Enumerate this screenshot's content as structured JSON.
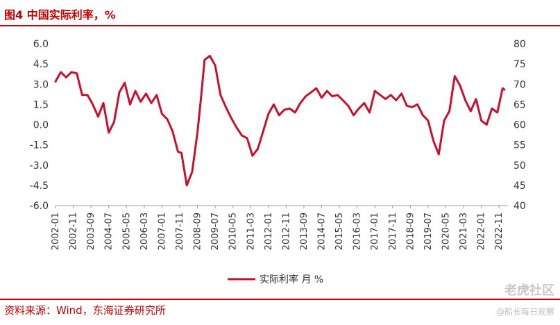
{
  "header": {
    "title": "图4  中国实际利率，%"
  },
  "footer": {
    "source": "资料来源：Wind，东海证券研究所"
  },
  "watermark": {
    "brand": "老虎社区",
    "handle": "@船长每日观察"
  },
  "colors": {
    "accent": "#c00000",
    "series": "#c8102e"
  },
  "chart_data": {
    "type": "line",
    "title": "",
    "xlabel": "",
    "ylabel": "",
    "ylim": [
      -6.0,
      6.0
    ],
    "y2lim": [
      40,
      80
    ],
    "yticks": [
      "6.0",
      "4.5",
      "3.0",
      "1.5",
      "0.0",
      "-1.5",
      "-3.0",
      "-4.5",
      "-6.0"
    ],
    "y2ticks": [
      "80",
      "75",
      "70",
      "65",
      "60",
      "55",
      "50",
      "45",
      "40"
    ],
    "xticks": [
      "2002-01",
      "2002-11",
      "2003-09",
      "2004-07",
      "2005-05",
      "2006-03",
      "2007-01",
      "2007-11",
      "2008-09",
      "2009-07",
      "2010-05",
      "2011-03",
      "2012-01",
      "2012-11",
      "2013-09",
      "2014-07",
      "2015-05",
      "2016-03",
      "2017-01",
      "2017-11",
      "2018-09",
      "2019-07",
      "2020-05",
      "2021-03",
      "2022-01",
      "2022-11"
    ],
    "legend": {
      "position": "bottom-center"
    },
    "grid": false,
    "series": [
      {
        "name": "实际利率 月 %",
        "x": [
          "2002-01",
          "2002-04",
          "2002-07",
          "2002-10",
          "2003-01",
          "2003-04",
          "2003-07",
          "2003-10",
          "2004-01",
          "2004-04",
          "2004-07",
          "2004-10",
          "2005-01",
          "2005-04",
          "2005-07",
          "2005-10",
          "2006-01",
          "2006-04",
          "2006-07",
          "2006-10",
          "2007-01",
          "2007-04",
          "2007-07",
          "2007-10",
          "2007-12",
          "2008-03",
          "2008-06",
          "2008-09",
          "2008-11",
          "2009-01",
          "2009-04",
          "2009-07",
          "2009-10",
          "2010-01",
          "2010-04",
          "2010-07",
          "2010-10",
          "2011-01",
          "2011-04",
          "2011-07",
          "2011-10",
          "2012-01",
          "2012-04",
          "2012-07",
          "2012-10",
          "2013-01",
          "2013-04",
          "2013-07",
          "2013-10",
          "2014-01",
          "2014-04",
          "2014-07",
          "2014-10",
          "2015-01",
          "2015-04",
          "2015-07",
          "2015-10",
          "2016-01",
          "2016-04",
          "2016-07",
          "2016-10",
          "2017-01",
          "2017-04",
          "2017-07",
          "2017-10",
          "2018-01",
          "2018-04",
          "2018-07",
          "2018-10",
          "2019-01",
          "2019-04",
          "2019-07",
          "2019-10",
          "2020-01",
          "2020-04",
          "2020-07",
          "2020-10",
          "2021-01",
          "2021-04",
          "2021-07",
          "2021-10",
          "2022-01",
          "2022-04",
          "2022-07",
          "2022-10",
          "2023-01",
          "2023-02"
        ],
        "values": [
          3.2,
          3.9,
          3.5,
          3.9,
          3.8,
          2.2,
          2.2,
          1.5,
          0.6,
          1.6,
          -0.6,
          0.2,
          2.4,
          3.1,
          1.5,
          2.5,
          1.7,
          2.3,
          1.6,
          2.2,
          0.8,
          0.4,
          -0.5,
          -2.0,
          -2.1,
          -4.5,
          -3.5,
          -0.6,
          2.0,
          4.8,
          5.1,
          4.4,
          2.2,
          1.3,
          0.5,
          -0.2,
          -0.8,
          -1.0,
          -2.3,
          -1.8,
          -0.5,
          0.8,
          1.5,
          0.7,
          1.1,
          1.2,
          0.9,
          1.6,
          2.1,
          2.4,
          2.7,
          2.0,
          2.5,
          2.1,
          2.2,
          1.8,
          1.4,
          0.7,
          1.2,
          1.6,
          0.9,
          2.5,
          2.2,
          1.9,
          2.2,
          1.8,
          2.3,
          1.4,
          1.3,
          1.5,
          0.7,
          0.3,
          -1.2,
          -2.2,
          0.3,
          1.0,
          3.6,
          2.9,
          1.8,
          1.0,
          1.9,
          0.3,
          0.0,
          1.2,
          0.9,
          2.7,
          2.6
        ]
      }
    ]
  }
}
